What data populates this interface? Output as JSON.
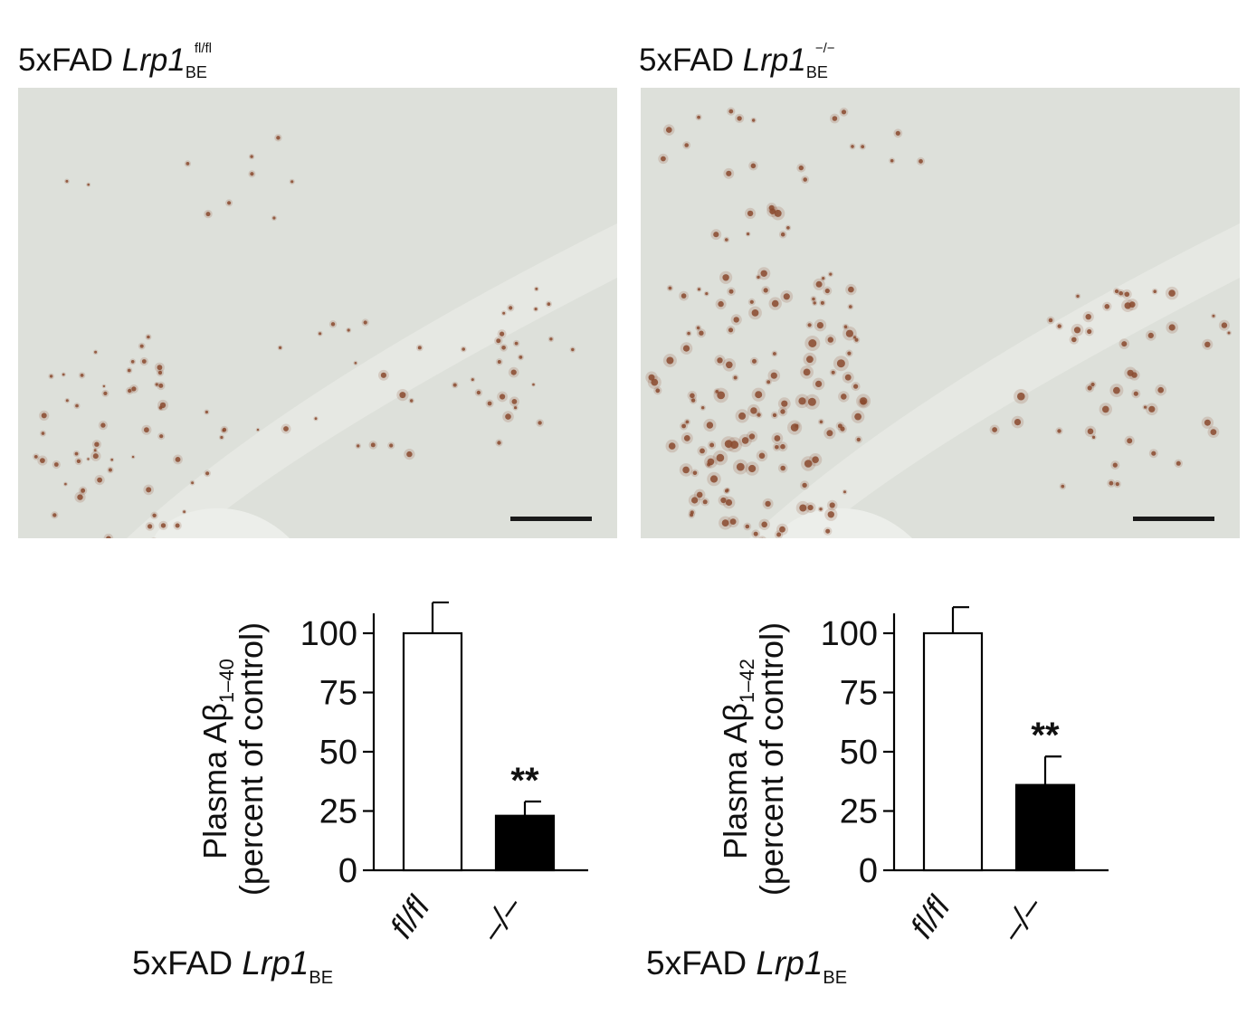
{
  "panels": [
    {
      "title": {
        "prefix": "5xFAD ",
        "gene": "Lrp1",
        "sub": "BE",
        "sup": "fl/fl"
      },
      "micrograph": {
        "scale_bar": true,
        "plaque_density": "moderate"
      }
    },
    {
      "title": {
        "prefix": "5xFAD ",
        "gene": "Lrp1",
        "sub": "BE",
        "sup": "−/−"
      },
      "micrograph": {
        "scale_bar": true,
        "plaque_density": "high"
      }
    }
  ],
  "genotype_label": {
    "prefix": "5xFAD ",
    "gene": "Lrp1",
    "sub": "BE"
  },
  "colors": {
    "control_fill": "#ffffff",
    "knockout_fill": "#000000",
    "stroke": "#000000",
    "plaque": "#8a4a2e",
    "tissue": "#dde0da"
  },
  "chart_data": [
    {
      "type": "bar",
      "ylabel": {
        "line1_main": "Plasma Aβ",
        "line1_sub": "1–40",
        "line2": "(percent of control)"
      },
      "categories": [
        "fl/fl",
        "–/–"
      ],
      "values": [
        100,
        23
      ],
      "error": [
        13,
        6
      ],
      "significance": [
        "",
        "**"
      ],
      "ylim": [
        0,
        100
      ],
      "yticks": [
        0,
        25,
        50,
        75,
        100
      ],
      "fills": [
        "#ffffff",
        "#000000"
      ]
    },
    {
      "type": "bar",
      "ylabel": {
        "line1_main": "Plasma Aβ",
        "line1_sub": "1–42",
        "line2": "(percent of control)"
      },
      "categories": [
        "fl/fl",
        "–/–"
      ],
      "values": [
        100,
        36
      ],
      "error": [
        11,
        12
      ],
      "significance": [
        "",
        "**"
      ],
      "ylim": [
        0,
        100
      ],
      "yticks": [
        0,
        25,
        50,
        75,
        100
      ],
      "fills": [
        "#ffffff",
        "#000000"
      ]
    }
  ]
}
